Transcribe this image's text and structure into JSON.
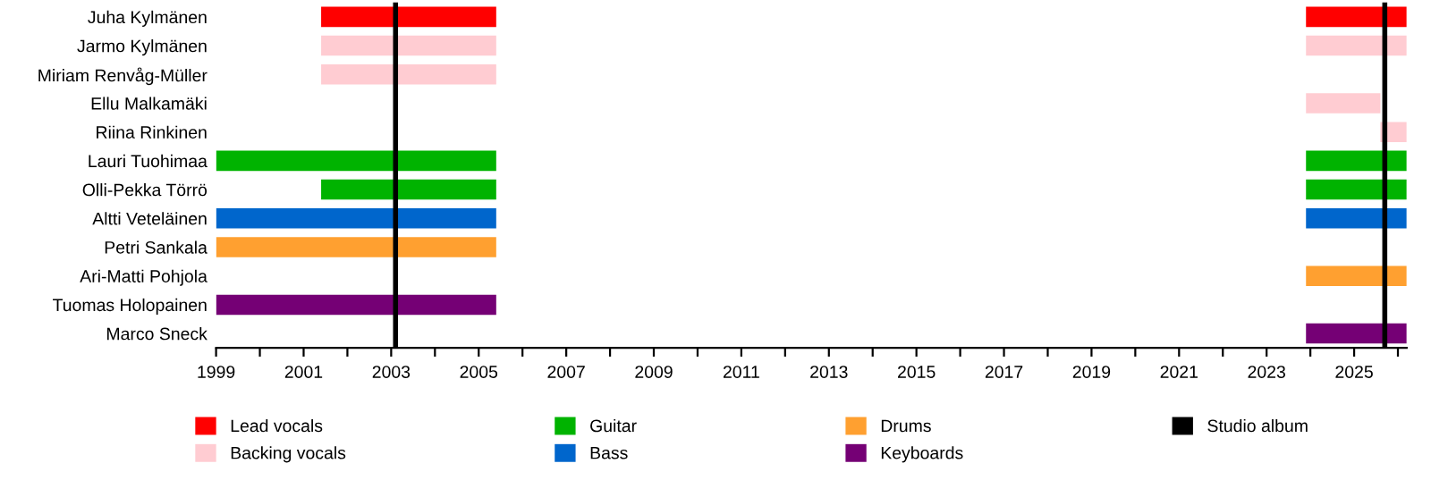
{
  "chart_data": {
    "type": "bar",
    "orientation": "horizontal",
    "categories": [
      "Juha Kylmänen",
      "Jarmo Kylmänen",
      "Miriam Renvåg-Müller",
      "Ellu Malkamäki",
      "Riina Rinkinen",
      "Lauri Tuohimaa",
      "Olli-Pekka Törrö",
      "Altti Veteläinen",
      "Petri Sankala",
      "Ari-Matti Pohjola",
      "Tuomas Holopainen",
      "Marco Sneck"
    ],
    "series": [
      {
        "name": "Lead vocals",
        "color": "#ff0000",
        "base": [
          2001.4,
          null,
          null,
          null,
          null,
          null,
          null,
          null,
          null,
          null,
          null,
          null
        ],
        "values": [
          4.0,
          null,
          null,
          null,
          null,
          null,
          null,
          null,
          null,
          null,
          null,
          null
        ]
      },
      {
        "name": "Backing vocals",
        "color": "#ffccd2",
        "base": [
          null,
          2001.4,
          2001.4,
          null,
          null,
          null,
          null,
          null,
          null,
          null,
          null,
          null
        ],
        "values": [
          null,
          4.0,
          4.0,
          null,
          null,
          null,
          null,
          null,
          null,
          null,
          null,
          null
        ]
      },
      {
        "name": "Guitar",
        "color": "#00b300",
        "base": [
          null,
          null,
          null,
          null,
          null,
          1999,
          2001.4,
          null,
          null,
          null,
          null,
          null
        ],
        "values": [
          null,
          null,
          null,
          null,
          null,
          6.4,
          4.0,
          null,
          null,
          null,
          null,
          null
        ]
      },
      {
        "name": "Bass",
        "color": "#0066cc",
        "base": [
          null,
          null,
          null,
          null,
          null,
          null,
          null,
          1999,
          null,
          null,
          null,
          null
        ],
        "values": [
          null,
          null,
          null,
          null,
          null,
          null,
          null,
          6.4,
          null,
          null,
          null,
          null
        ]
      },
      {
        "name": "Drums",
        "color": "#ffa030",
        "base": [
          null,
          null,
          null,
          null,
          null,
          null,
          null,
          null,
          1999,
          null,
          null,
          null
        ],
        "values": [
          null,
          null,
          null,
          null,
          null,
          null,
          null,
          null,
          6.4,
          null,
          null,
          null
        ]
      },
      {
        "name": "Keyboards",
        "color": "#750075",
        "base": [
          null,
          null,
          null,
          null,
          null,
          null,
          null,
          null,
          null,
          null,
          1999,
          null
        ],
        "values": [
          null,
          null,
          null,
          null,
          null,
          null,
          null,
          null,
          null,
          null,
          6.4,
          null
        ]
      },
      {
        "color": "#ff0000",
        "base": [
          2023.9,
          null,
          null,
          null,
          null,
          null,
          null,
          null,
          null,
          null,
          null,
          null
        ],
        "values": [
          2.3,
          null,
          null,
          null,
          null,
          null,
          null,
          null,
          null,
          null,
          null,
          null
        ]
      },
      {
        "color": "#ffccd2",
        "base": [
          null,
          2023.9,
          null,
          2023.9,
          2025.6,
          null,
          null,
          null,
          null,
          null,
          null,
          null
        ],
        "values": [
          null,
          2.3,
          null,
          1.7,
          0.6,
          null,
          null,
          null,
          null,
          null,
          null,
          null
        ]
      },
      {
        "color": "#00b300",
        "base": [
          null,
          null,
          null,
          null,
          null,
          2023.9,
          2023.9,
          null,
          null,
          null,
          null,
          null
        ],
        "values": [
          null,
          null,
          null,
          null,
          null,
          2.3,
          2.3,
          null,
          null,
          null,
          null,
          null
        ]
      },
      {
        "color": "#0066cc",
        "base": [
          null,
          null,
          null,
          null,
          null,
          null,
          null,
          2023.9,
          null,
          null,
          null,
          null
        ],
        "values": [
          null,
          null,
          null,
          null,
          null,
          null,
          null,
          2.3,
          null,
          null,
          null,
          null
        ]
      },
      {
        "color": "#ffa030",
        "base": [
          null,
          null,
          null,
          null,
          null,
          null,
          null,
          null,
          null,
          2023.9,
          null,
          null
        ],
        "values": [
          null,
          null,
          null,
          null,
          null,
          null,
          null,
          null,
          null,
          2.3,
          null,
          null
        ]
      },
      {
        "color": "#750075",
        "base": [
          null,
          null,
          null,
          null,
          null,
          null,
          null,
          null,
          null,
          null,
          null,
          2023.9
        ],
        "values": [
          null,
          null,
          null,
          null,
          null,
          null,
          null,
          null,
          null,
          null,
          null,
          2.3
        ]
      }
    ],
    "ref_lines": [
      {
        "axis": "x",
        "value": 2003.1,
        "label": "Studio album",
        "color": "#000000"
      },
      {
        "axis": "x",
        "value": 2025.7,
        "color": "#000000"
      }
    ],
    "xlim": [
      1999,
      2026.2
    ],
    "xticks": [
      1999,
      {
        "value": 2000,
        "label": null
      },
      2001,
      {
        "value": 2002,
        "label": null
      },
      2003,
      {
        "value": 2004,
        "label": null
      },
      2005,
      {
        "value": 2006,
        "label": null
      },
      2007,
      {
        "value": 2008,
        "label": null
      },
      2009,
      {
        "value": 2010,
        "label": null
      },
      2011,
      {
        "value": 2012,
        "label": null
      },
      2013,
      {
        "value": 2014,
        "label": null
      },
      2015,
      {
        "value": 2016,
        "label": null
      },
      2017,
      {
        "value": 2018,
        "label": null
      },
      2019,
      {
        "value": 2020,
        "label": null
      },
      2021,
      {
        "value": 2022,
        "label": null
      },
      2023,
      {
        "value": 2024,
        "label": null
      },
      2025,
      {
        "value": 2026,
        "label": null
      }
    ],
    "grid": false,
    "legend": "bottom"
  }
}
